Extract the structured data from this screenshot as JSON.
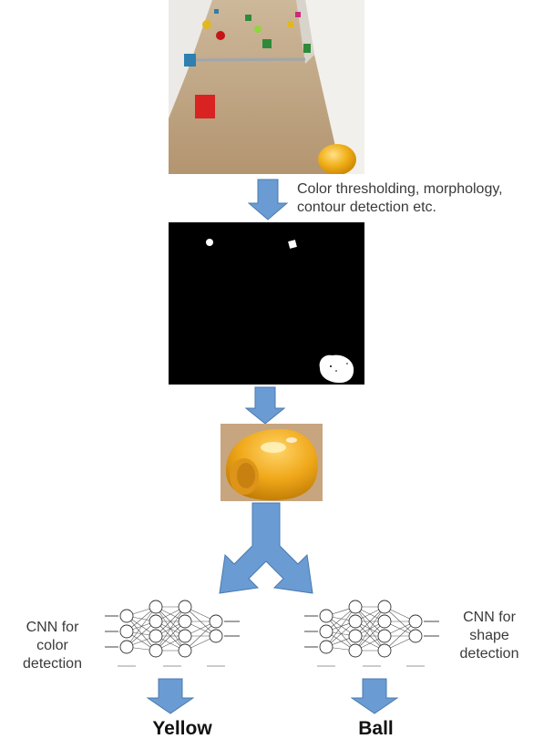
{
  "pipeline": {
    "step_label_line1": "Color thresholding, morphology,",
    "step_label_line2": "contour detection etc."
  },
  "cnn_color": {
    "line1": "CNN for",
    "line2": "color",
    "line3": "detection"
  },
  "cnn_shape": {
    "line1": "CNN for",
    "line2": "shape",
    "line3": "detection"
  },
  "outputs": {
    "color_result": "Yellow",
    "shape_result": "Ball"
  },
  "colors": {
    "arrow_fill": "#6a9bd3",
    "arrow_stroke": "#4a7ab0",
    "ball": "#f2b21c",
    "mask_bg": "#000000"
  }
}
